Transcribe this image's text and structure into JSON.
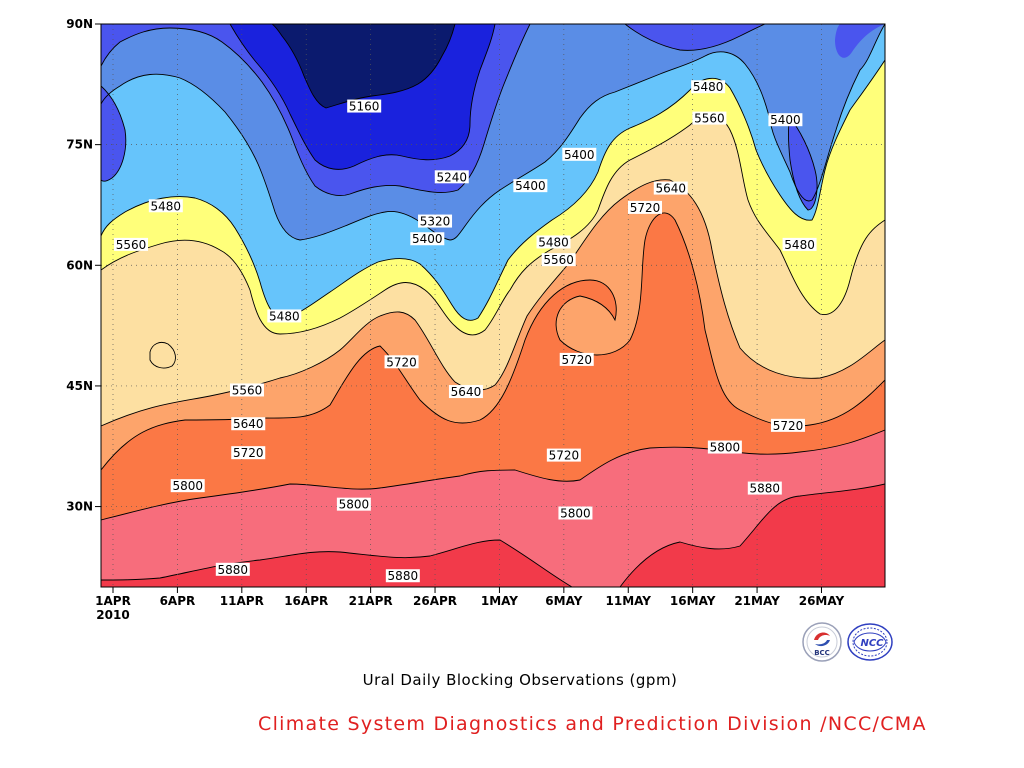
{
  "chart_data": {
    "type": "heatmap",
    "subtype": "filled-contour",
    "title": "Ural Daily Blocking Observations (gpm)",
    "x_tick_labels": [
      "1APR",
      "6APR",
      "11APR",
      "16APR",
      "21APR",
      "26APR",
      "1MAY",
      "6MAY",
      "11MAY",
      "16MAY",
      "21MAY",
      "26MAY"
    ],
    "x_year_label": "2010",
    "x_day_range": [
      0,
      59
    ],
    "x_tick_days": [
      0,
      5,
      10,
      15,
      20,
      25,
      30,
      35,
      40,
      45,
      50,
      55
    ],
    "y_tick_labels": [
      "30N",
      "45N",
      "60N",
      "75N",
      "90N"
    ],
    "y_tick_values": [
      30,
      45,
      60,
      75,
      90
    ],
    "ylim": [
      20,
      90
    ],
    "grid": true,
    "contour_levels": [
      5160,
      5240,
      5320,
      5400,
      5480,
      5560,
      5640,
      5720,
      5800,
      5880
    ],
    "fill_colors": [
      "#0b1a6e",
      "#1a22dd",
      "#4a55ee",
      "#5a8de6",
      "#66c4fb",
      "#ffff7a",
      "#fde0a2",
      "#fda46b",
      "#fb7845",
      "#f76d7c",
      "#f23a4a"
    ],
    "contour_labels": [
      {
        "text": "5160",
        "day": 19.5,
        "lat": 79.8
      },
      {
        "text": "5240",
        "day": 26.3,
        "lat": 71.0
      },
      {
        "text": "5320",
        "day": 25.0,
        "lat": 65.5
      },
      {
        "text": "5400",
        "day": 24.4,
        "lat": 63.3
      },
      {
        "text": "5400",
        "day": 32.4,
        "lat": 69.9
      },
      {
        "text": "5400",
        "day": 36.2,
        "lat": 73.8
      },
      {
        "text": "5400",
        "day": 52.2,
        "lat": 78.1
      },
      {
        "text": "5480",
        "day": 4.1,
        "lat": 67.4
      },
      {
        "text": "5480",
        "day": 13.3,
        "lat": 53.7
      },
      {
        "text": "5480",
        "day": 34.2,
        "lat": 62.9
      },
      {
        "text": "5480",
        "day": 46.2,
        "lat": 82.2
      },
      {
        "text": "5480",
        "day": 53.3,
        "lat": 62.6
      },
      {
        "text": "5560",
        "day": 1.4,
        "lat": 62.6
      },
      {
        "text": "5560",
        "day": 10.4,
        "lat": 44.5
      },
      {
        "text": "5560",
        "day": 34.6,
        "lat": 60.7
      },
      {
        "text": "5560",
        "day": 46.3,
        "lat": 78.3
      },
      {
        "text": "5640",
        "day": 10.5,
        "lat": 40.3
      },
      {
        "text": "5640",
        "day": 27.4,
        "lat": 44.3
      },
      {
        "text": "5640",
        "day": 43.3,
        "lat": 69.6
      },
      {
        "text": "5720",
        "day": 10.5,
        "lat": 36.7
      },
      {
        "text": "5720",
        "day": 22.4,
        "lat": 48.0
      },
      {
        "text": "5720",
        "day": 36.0,
        "lat": 48.3
      },
      {
        "text": "5720",
        "day": 35.0,
        "lat": 36.4
      },
      {
        "text": "5720",
        "day": 41.3,
        "lat": 67.2
      },
      {
        "text": "5720",
        "day": 52.4,
        "lat": 40.1
      },
      {
        "text": "5800",
        "day": 5.8,
        "lat": 32.6
      },
      {
        "text": "5800",
        "day": 18.7,
        "lat": 30.3
      },
      {
        "text": "5800",
        "day": 35.9,
        "lat": 29.2
      },
      {
        "text": "5800",
        "day": 47.5,
        "lat": 37.4
      },
      {
        "text": "5880",
        "day": 9.3,
        "lat": 22.2
      },
      {
        "text": "5880",
        "day": 22.5,
        "lat": 21.4
      },
      {
        "text": "5880",
        "day": 50.6,
        "lat": 32.3
      }
    ]
  },
  "caption": "Ural Daily Blocking Observations (gpm)",
  "credit": "Climate System Diagnostics and Prediction Division /NCC/CMA",
  "logos": {
    "left_text": "BCC",
    "right_text": "NCC"
  }
}
